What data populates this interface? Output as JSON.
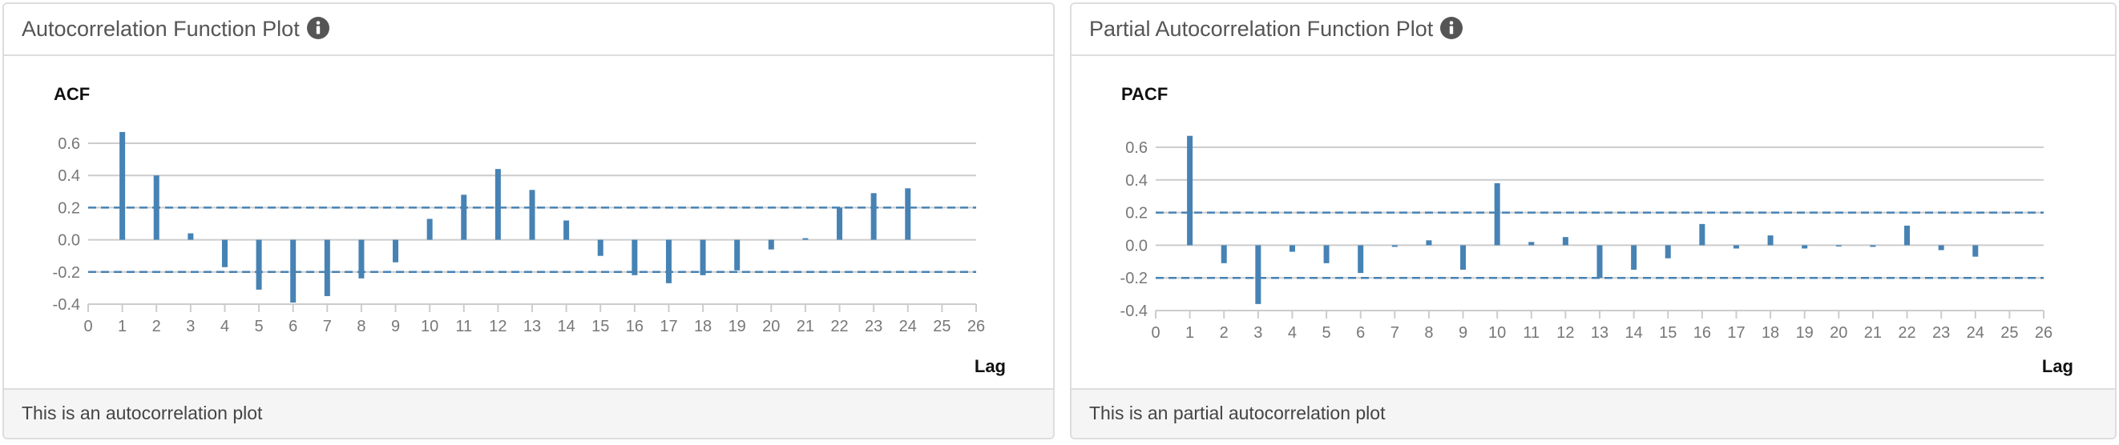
{
  "panels": [
    {
      "title": "Autocorrelation Function Plot",
      "footer": "This is an autocorrelation plot",
      "info_icon": "info-icon"
    },
    {
      "title": "Partial Autocorrelation Function Plot",
      "footer": "This is an partial autocorrelation plot",
      "info_icon": "info-icon"
    }
  ],
  "colors": {
    "bar": "#4682b4",
    "confidence_line": "#4682b4",
    "grid": "#cccccc",
    "icon": "#555555"
  },
  "chart_data": [
    {
      "type": "bar",
      "title": "ACF",
      "xlabel": "Lag",
      "ylabel": "",
      "x": [
        1,
        2,
        3,
        4,
        5,
        6,
        7,
        8,
        9,
        10,
        11,
        12,
        13,
        14,
        15,
        16,
        17,
        18,
        19,
        20,
        21,
        22,
        23,
        24
      ],
      "values": [
        0.67,
        0.4,
        0.04,
        -0.17,
        -0.31,
        -0.39,
        -0.35,
        -0.24,
        -0.14,
        0.13,
        0.28,
        0.44,
        0.31,
        0.12,
        -0.1,
        -0.22,
        -0.27,
        -0.22,
        -0.19,
        -0.06,
        0.01,
        0.2,
        0.29,
        0.32
      ],
      "confidence_band": [
        -0.2,
        0.2
      ],
      "xlim": [
        0,
        26
      ],
      "ylim": [
        -0.4,
        0.6
      ],
      "x_ticks": [
        "0",
        "1",
        "2",
        "3",
        "4",
        "5",
        "6",
        "7",
        "8",
        "9",
        "10",
        "11",
        "12",
        "13",
        "14",
        "15",
        "16",
        "17",
        "18",
        "19",
        "20",
        "21",
        "22",
        "23",
        "24",
        "25",
        "26"
      ],
      "y_ticks": [
        "0.6",
        "0.4",
        "0.2",
        "0.0",
        "-0.2",
        "-0.4"
      ],
      "grid": true,
      "legend": "none"
    },
    {
      "type": "bar",
      "title": "PACF",
      "xlabel": "Lag",
      "ylabel": "",
      "x": [
        1,
        2,
        3,
        4,
        5,
        6,
        7,
        8,
        9,
        10,
        11,
        12,
        13,
        14,
        15,
        16,
        17,
        18,
        19,
        20,
        21,
        22,
        23,
        24
      ],
      "values": [
        0.67,
        -0.11,
        -0.36,
        -0.04,
        -0.11,
        -0.17,
        -0.01,
        0.03,
        -0.15,
        0.38,
        0.02,
        0.05,
        -0.2,
        -0.15,
        -0.08,
        0.13,
        -0.02,
        0.06,
        -0.02,
        0.0,
        -0.01,
        0.12,
        -0.03,
        -0.07
      ],
      "confidence_band": [
        -0.2,
        0.2
      ],
      "xlim": [
        0,
        26
      ],
      "ylim": [
        -0.4,
        0.6
      ],
      "x_ticks": [
        "0",
        "1",
        "2",
        "3",
        "4",
        "5",
        "6",
        "7",
        "8",
        "9",
        "10",
        "11",
        "12",
        "13",
        "14",
        "15",
        "16",
        "17",
        "18",
        "19",
        "20",
        "21",
        "22",
        "23",
        "24",
        "25",
        "26"
      ],
      "y_ticks": [
        "0.6",
        "0.4",
        "0.2",
        "0.0",
        "-0.2",
        "-0.4"
      ],
      "grid": true,
      "legend": "none"
    }
  ]
}
